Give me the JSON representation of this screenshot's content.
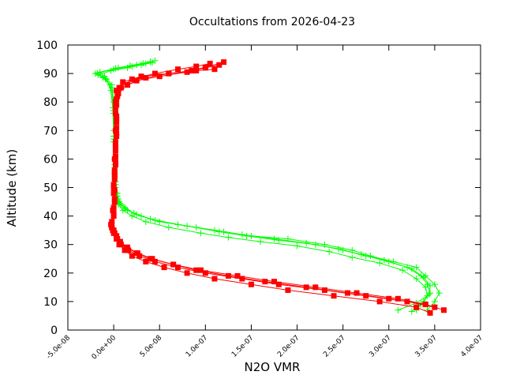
{
  "chart_data": {
    "type": "scatter",
    "title": "Occultations from 2026-04-23",
    "xlabel": "N2O VMR",
    "ylabel": "Altitude (km)",
    "xlim": [
      -5e-08,
      4e-07
    ],
    "ylim": [
      0,
      100
    ],
    "xticks": [
      "-5.0e-08",
      "0.0e+00",
      "5.0e-08",
      "1.0e-07",
      "1.5e-07",
      "2.0e-07",
      "2.5e-07",
      "3.0e-07",
      "3.5e-07",
      "4.0e-07"
    ],
    "yticks": [
      "0",
      "10",
      "20",
      "30",
      "40",
      "50",
      "60",
      "70",
      "80",
      "90",
      "100"
    ],
    "grid": false,
    "series": [
      {
        "color": "#00ff00",
        "marker": "plus",
        "profiles": [
          [
            [
              3.42e-07,
              7
            ],
            [
              3.5e-07,
              10
            ],
            [
              3.55e-07,
              13
            ],
            [
              3.5e-07,
              16
            ],
            [
              3.4e-07,
              19
            ],
            [
              3.3e-07,
              22
            ],
            [
              3.05e-07,
              24
            ],
            [
              2.8e-07,
              26
            ],
            [
              2.6e-07,
              28
            ],
            [
              2.3e-07,
              30
            ],
            [
              1.9e-07,
              32
            ],
            [
              1.5e-07,
              33
            ],
            [
              1.2e-07,
              34.5
            ],
            [
              9e-08,
              36
            ],
            [
              5e-08,
              38
            ],
            [
              3e-08,
              40
            ],
            [
              1.5e-08,
              42
            ],
            [
              8e-09,
              44
            ],
            [
              5e-09,
              46
            ],
            [
              3e-09,
              48
            ],
            [
              2e-09,
              51
            ],
            [
              1e-09,
              55
            ],
            [
              1e-09,
              60
            ],
            [
              0,
              70
            ],
            [
              0,
              80
            ],
            [
              -2e-09,
              86
            ],
            [
              -1e-08,
              89
            ],
            [
              -1.5e-08,
              90.5
            ],
            [
              5e-09,
              92
            ],
            [
              2.5e-08,
              93
            ],
            [
              4e-08,
              94
            ]
          ],
          [
            [
              3.3e-07,
              7
            ],
            [
              3.38e-07,
              10
            ],
            [
              3.45e-07,
              13
            ],
            [
              3.42e-07,
              16
            ],
            [
              3.35e-07,
              19
            ],
            [
              3.2e-07,
              22
            ],
            [
              2.95e-07,
              24.5
            ],
            [
              2.7e-07,
              26.5
            ],
            [
              2.45e-07,
              28.5
            ],
            [
              2.1e-07,
              30.5
            ],
            [
              1.75e-07,
              32
            ],
            [
              1.4e-07,
              33.5
            ],
            [
              1.1e-07,
              35
            ],
            [
              7e-08,
              37
            ],
            [
              4e-08,
              39
            ],
            [
              2.2e-08,
              41
            ],
            [
              1.2e-08,
              43
            ],
            [
              6e-09,
              45
            ],
            [
              4e-09,
              48
            ],
            [
              2e-09,
              52
            ],
            [
              1e-09,
              58
            ],
            [
              0,
              68
            ],
            [
              -1e-09,
              78
            ],
            [
              -4e-09,
              86
            ],
            [
              -1.2e-08,
              88.5
            ],
            [
              -2e-08,
              90
            ],
            [
              0,
              91.5
            ],
            [
              2e-08,
              92.5
            ],
            [
              3.5e-08,
              93.5
            ],
            [
              4.5e-08,
              94.5
            ]
          ],
          [
            [
              3.25e-07,
              6.5
            ],
            [
              3.35e-07,
              9
            ],
            [
              3.42e-07,
              12
            ],
            [
              3.4e-07,
              15
            ],
            [
              3.3e-07,
              18
            ],
            [
              3.15e-07,
              21
            ],
            [
              2.9e-07,
              23.5
            ],
            [
              2.6e-07,
              25.5
            ],
            [
              2.35e-07,
              27.5
            ],
            [
              2e-07,
              29.5
            ],
            [
              1.6e-07,
              31
            ],
            [
              1.25e-07,
              32.5
            ],
            [
              9.5e-08,
              34
            ],
            [
              6e-08,
              36
            ],
            [
              3.5e-08,
              38
            ],
            [
              2e-08,
              40
            ],
            [
              1e-08,
              42
            ],
            [
              5e-09,
              44
            ],
            [
              3e-09,
              47
            ],
            [
              2e-09,
              50
            ],
            [
              1e-09,
              56
            ],
            [
              0,
              66
            ],
            [
              0,
              76
            ],
            [
              -3e-09,
              84
            ],
            [
              -8e-09,
              88
            ],
            [
              -1.7e-08,
              89.5
            ],
            [
              -3e-09,
              91
            ],
            [
              1.5e-08,
              92
            ],
            [
              3e-08,
              93
            ],
            [
              4.2e-08,
              93.8
            ]
          ],
          [
            [
              3.1e-07,
              7
            ],
            [
              3.3e-07,
              9.5
            ],
            [
              3.44e-07,
              12.5
            ],
            [
              3.45e-07,
              15.5
            ],
            [
              3.38e-07,
              18.5
            ],
            [
              3.25e-07,
              21.5
            ],
            [
              3e-07,
              24
            ],
            [
              2.75e-07,
              26
            ],
            [
              2.5e-07,
              28
            ],
            [
              2.2e-07,
              30
            ],
            [
              1.8e-07,
              31.5
            ],
            [
              1.45e-07,
              33
            ],
            [
              1.15e-07,
              34.5
            ],
            [
              8e-08,
              36.5
            ],
            [
              4.5e-08,
              38.5
            ],
            [
              2.5e-08,
              40.5
            ],
            [
              1.3e-08,
              42.5
            ],
            [
              7e-09,
              44.5
            ],
            [
              4e-09,
              47
            ],
            [
              2e-09,
              51
            ],
            [
              1e-09,
              57
            ],
            [
              0,
              67
            ],
            [
              0,
              77
            ],
            [
              -2e-09,
              85
            ],
            [
              -9e-09,
              88.2
            ],
            [
              -1.8e-08,
              90.2
            ],
            [
              2e-09,
              91.8
            ],
            [
              1.8e-08,
              92.8
            ],
            [
              3.2e-08,
              93.6
            ],
            [
              4e-08,
              94.2
            ]
          ]
        ]
      },
      {
        "color": "#ff0000",
        "marker": "square",
        "profiles": [
          [
            [
              3.45e-07,
              6
            ],
            [
              3.3e-07,
              8
            ],
            [
              2.9e-07,
              10
            ],
            [
              2.4e-07,
              12
            ],
            [
              1.9e-07,
              14
            ],
            [
              1.5e-07,
              16
            ],
            [
              1.1e-07,
              18
            ],
            [
              8e-08,
              20
            ],
            [
              5.5e-08,
              22
            ],
            [
              3.5e-08,
              24
            ],
            [
              2e-08,
              26
            ],
            [
              1.2e-08,
              28
            ],
            [
              6e-09,
              30
            ],
            [
              3e-09,
              32
            ],
            [
              0,
              34
            ],
            [
              -2e-09,
              36
            ],
            [
              0,
              40
            ],
            [
              1e-09,
              45
            ],
            [
              0,
              50
            ],
            [
              1e-09,
              55
            ],
            [
              1e-09,
              60
            ],
            [
              2e-09,
              65
            ],
            [
              2e-09,
              70
            ],
            [
              3e-09,
              75
            ],
            [
              2e-09,
              80
            ],
            [
              3e-09,
              84
            ],
            [
              1e-08,
              87
            ],
            [
              3e-08,
              89
            ],
            [
              6e-08,
              90
            ],
            [
              9e-08,
              91
            ],
            [
              1.1e-07,
              91.5
            ]
          ],
          [
            [
              3.6e-07,
              7
            ],
            [
              3.4e-07,
              9
            ],
            [
              3e-07,
              11
            ],
            [
              2.55e-07,
              13
            ],
            [
              2.1e-07,
              15
            ],
            [
              1.65e-07,
              17
            ],
            [
              1.25e-07,
              19
            ],
            [
              9e-08,
              21
            ],
            [
              6.5e-08,
              23
            ],
            [
              4e-08,
              25
            ],
            [
              2.5e-08,
              27
            ],
            [
              1.4e-08,
              29
            ],
            [
              7e-09,
              31
            ],
            [
              3e-09,
              33
            ],
            [
              -1e-09,
              35
            ],
            [
              -3e-09,
              37
            ],
            [
              -1e-09,
              42
            ],
            [
              0,
              48
            ],
            [
              1e-09,
              53
            ],
            [
              2e-09,
              58
            ],
            [
              2e-09,
              63
            ],
            [
              3e-09,
              68
            ],
            [
              3e-09,
              73
            ],
            [
              2e-09,
              78
            ],
            [
              4e-09,
              82
            ],
            [
              8e-09,
              85
            ],
            [
              2.5e-08,
              87.5
            ],
            [
              5e-08,
              89
            ],
            [
              8e-08,
              90.5
            ],
            [
              1e-07,
              92
            ],
            [
              1.15e-07,
              93
            ]
          ],
          [
            [
              3.5e-07,
              8
            ],
            [
              3.2e-07,
              10
            ],
            [
              2.75e-07,
              12
            ],
            [
              2.3e-07,
              14
            ],
            [
              1.8e-07,
              16
            ],
            [
              1.4e-07,
              18
            ],
            [
              1e-07,
              20
            ],
            [
              7e-08,
              22
            ],
            [
              4.5e-08,
              24
            ],
            [
              2.8e-08,
              26
            ],
            [
              1.6e-08,
              28
            ],
            [
              8e-09,
              30
            ],
            [
              4e-09,
              32
            ],
            [
              1e-09,
              34
            ],
            [
              -2e-09,
              36
            ],
            [
              0,
              41
            ],
            [
              1e-09,
              46
            ],
            [
              0,
              51
            ],
            [
              1e-09,
              56
            ],
            [
              2e-09,
              61
            ],
            [
              2e-09,
              66
            ],
            [
              3e-09,
              71
            ],
            [
              2e-09,
              76
            ],
            [
              3e-09,
              81
            ],
            [
              6e-09,
              85
            ],
            [
              2e-08,
              88
            ],
            [
              4.5e-08,
              90
            ],
            [
              7e-08,
              91.5
            ],
            [
              9e-08,
              92.5
            ],
            [
              1.05e-07,
              93.5
            ]
          ],
          [
            [
              3.4e-07,
              9
            ],
            [
              3.1e-07,
              11
            ],
            [
              2.65e-07,
              13
            ],
            [
              2.2e-07,
              15
            ],
            [
              1.75e-07,
              17
            ],
            [
              1.35e-07,
              19
            ],
            [
              9.5e-08,
              21
            ],
            [
              6.5e-08,
              23
            ],
            [
              4.2e-08,
              25
            ],
            [
              2.6e-08,
              27
            ],
            [
              1.5e-08,
              29
            ],
            [
              7e-09,
              31
            ],
            [
              3e-09,
              33
            ],
            [
              0,
              35
            ],
            [
              -2e-09,
              38
            ],
            [
              0,
              43
            ],
            [
              1e-09,
              49
            ],
            [
              1e-09,
              54
            ],
            [
              2e-09,
              59
            ],
            [
              2e-09,
              64
            ],
            [
              3e-09,
              69
            ],
            [
              3e-09,
              74
            ],
            [
              3e-09,
              79
            ],
            [
              5e-09,
              83
            ],
            [
              1.5e-08,
              86
            ],
            [
              3.5e-08,
              88.5
            ],
            [
              6e-08,
              90
            ],
            [
              8.5e-08,
              91
            ],
            [
              1e-07,
              92.2
            ],
            [
              1.2e-07,
              94
            ]
          ]
        ]
      }
    ]
  }
}
